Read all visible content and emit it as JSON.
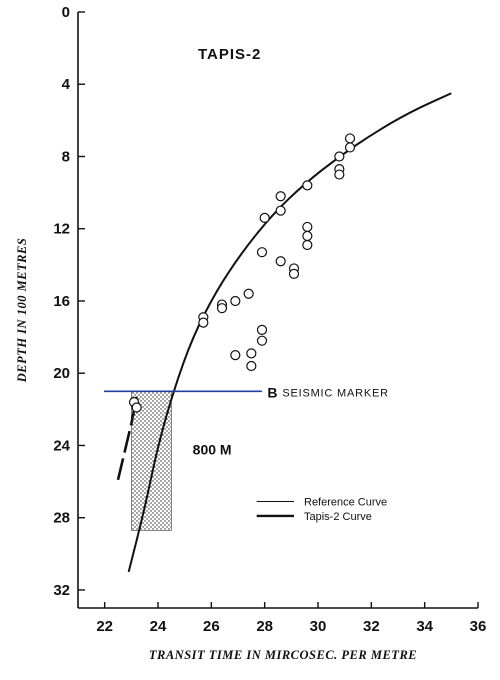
{
  "chart_data": {
    "type": "scatter",
    "title": "TAPIS-2",
    "xlabel": "TRANSIT TIME IN MIRCOSEC. PER METRE",
    "ylabel": "DEPTH  IN  100  METRES",
    "xlim": [
      21,
      36
    ],
    "ylim": [
      33,
      0
    ],
    "y_inverted": true,
    "xticks": [
      "22",
      "24",
      "26",
      "28",
      "30",
      "32",
      "34",
      "36"
    ],
    "yticks": [
      "0",
      "4",
      "8",
      "12",
      "16",
      "20",
      "24",
      "28",
      "32"
    ],
    "series": [
      {
        "name": "Reference Curve",
        "style": "thin-solid",
        "points": [
          [
            22.9,
            31
          ],
          [
            23.5,
            27.5
          ],
          [
            24.0,
            24.0
          ],
          [
            24.6,
            20.9
          ],
          [
            25.3,
            18.0
          ],
          [
            26.2,
            15.4
          ],
          [
            27.2,
            13.2
          ],
          [
            28.3,
            11.2
          ],
          [
            29.5,
            9.5
          ],
          [
            30.8,
            8.0
          ],
          [
            32.1,
            6.7
          ],
          [
            33.5,
            5.5
          ],
          [
            35.0,
            4.5
          ]
        ]
      },
      {
        "name": "Tapis-2 Curve",
        "style": "thick-dashed",
        "points": [
          [
            22.5,
            25.9
          ],
          [
            23.0,
            22.8
          ],
          [
            23.2,
            21.3
          ]
        ]
      },
      {
        "name": "",
        "style": "open-circles",
        "points": [
          [
            23.1,
            21.6
          ],
          [
            23.2,
            21.9
          ],
          [
            25.7,
            16.9
          ],
          [
            25.7,
            17.2
          ],
          [
            26.4,
            16.2
          ],
          [
            26.4,
            16.4
          ],
          [
            26.9,
            16.0
          ],
          [
            27.4,
            15.6
          ],
          [
            26.9,
            19.0
          ],
          [
            27.5,
            18.9
          ],
          [
            27.5,
            19.6
          ],
          [
            27.9,
            17.6
          ],
          [
            27.9,
            18.2
          ],
          [
            27.9,
            13.3
          ],
          [
            28.6,
            13.8
          ],
          [
            29.1,
            14.2
          ],
          [
            29.1,
            14.5
          ],
          [
            28.0,
            11.4
          ],
          [
            28.6,
            11.0
          ],
          [
            28.6,
            10.2
          ],
          [
            29.6,
            9.6
          ],
          [
            29.6,
            11.9
          ],
          [
            29.6,
            12.4
          ],
          [
            29.6,
            12.9
          ],
          [
            30.8,
            8.0
          ],
          [
            30.8,
            8.7
          ],
          [
            30.8,
            9.0
          ],
          [
            31.2,
            7.0
          ],
          [
            31.2,
            7.5
          ]
        ]
      }
    ],
    "marker": {
      "depth": 21,
      "label_letter": "B",
      "label_text": "SEISMIC MARKER",
      "color": "#1f3fa8"
    },
    "shaded_region": {
      "x": [
        23.0,
        24.5
      ],
      "y": [
        21,
        28.7
      ],
      "label": "800 M"
    },
    "legend": {
      "position": "bottom-right",
      "entries": [
        "Reference Curve",
        "Tapis-2 Curve"
      ]
    },
    "grid": false
  }
}
